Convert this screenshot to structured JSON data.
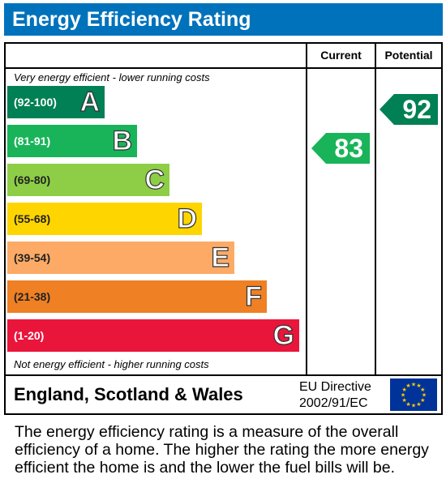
{
  "title": "Energy Efficiency Rating",
  "columns": {
    "current": "Current",
    "potential": "Potential"
  },
  "notes": {
    "top": "Very energy efficient - lower running costs",
    "bottom": "Not energy efficient - higher running costs"
  },
  "bands": [
    {
      "range": "(92-100)",
      "letter": "A",
      "color": "#008054",
      "text": "dark"
    },
    {
      "range": "(81-91)",
      "letter": "B",
      "color": "#19b459",
      "text": "dark"
    },
    {
      "range": "(69-80)",
      "letter": "C",
      "color": "#8dce46",
      "text": "light"
    },
    {
      "range": "(55-68)",
      "letter": "D",
      "color": "#ffd500",
      "text": "light"
    },
    {
      "range": "(39-54)",
      "letter": "E",
      "color": "#fcaa65",
      "text": "light"
    },
    {
      "range": "(21-38)",
      "letter": "F",
      "color": "#ef8023",
      "text": "light"
    },
    {
      "range": "(1-20)",
      "letter": "G",
      "color": "#e9153b",
      "text": "dark"
    }
  ],
  "ratings": {
    "current": {
      "value": "83",
      "color": "#19b459"
    },
    "potential": {
      "value": "92",
      "color": "#008054"
    }
  },
  "footer": {
    "region": "England, Scotland & Wales",
    "directive_line1": "EU Directive",
    "directive_line2": "2002/91/EC"
  },
  "description": "The energy efficiency rating is a measure of the overall efficiency of a home. The higher the rating the more energy efficient the home is and the lower the fuel bills will be."
}
